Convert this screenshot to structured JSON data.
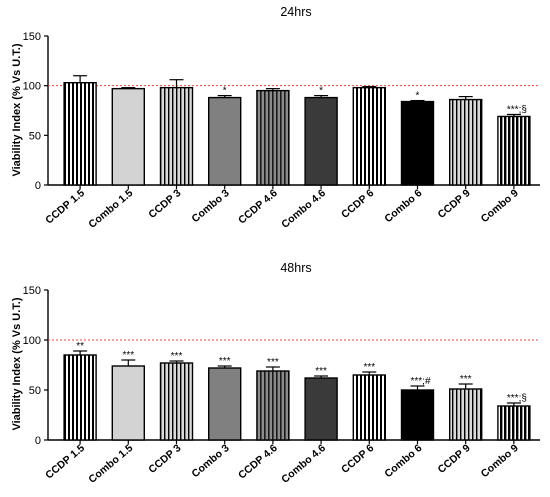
{
  "colors": {
    "reference_line": "#e8473c",
    "axis": "#000000"
  },
  "chart_data": [
    {
      "type": "bar",
      "title": "24hrs",
      "ylabel": "Viability Index (% Vs U.T.)",
      "xlabel": "",
      "ylim": [
        0,
        150
      ],
      "yticks": [
        0,
        50,
        100,
        150
      ],
      "reference_line": 100,
      "categories": [
        "CCDP 1.5",
        "Combo 1.5",
        "CCDP 3",
        "Combo 3",
        "CCDP 4.6",
        "Combo 4.6",
        "CCDP 6",
        "Combo 6",
        "CCDP 9",
        "Combo 9"
      ],
      "values": [
        103,
        97,
        98,
        88,
        95,
        88,
        98,
        84,
        86,
        69
      ],
      "errors": [
        7,
        1,
        8,
        2,
        2,
        2,
        1,
        1,
        3,
        2
      ],
      "patterns": [
        "vstripes-white",
        "light-gray",
        "vstripes-light",
        "mid-gray",
        "vstripes-gray",
        "dark-gray",
        "vstripes-white",
        "black",
        "vstripes-light",
        "vstripes-black"
      ],
      "significance": [
        "",
        "",
        "",
        "*",
        "",
        "*",
        "",
        "*",
        "",
        "***;§"
      ]
    },
    {
      "type": "bar",
      "title": "48hrs",
      "ylabel": "Viability Index (% Vs U.T.)",
      "xlabel": "",
      "ylim": [
        0,
        150
      ],
      "yticks": [
        0,
        50,
        100,
        150
      ],
      "reference_line": 100,
      "categories": [
        "CCDP 1.5",
        "Combo 1.5",
        "CCDP 3",
        "Combo 3",
        "CCDP 4.6",
        "Combo 4.6",
        "CCDP 6",
        "Combo 6",
        "CCDP 9",
        "Combo 9"
      ],
      "values": [
        85,
        74,
        77,
        72,
        69,
        62,
        65,
        50,
        51,
        34
      ],
      "errors": [
        4,
        6,
        2,
        2,
        4,
        2,
        3,
        4,
        5,
        3
      ],
      "patterns": [
        "vstripes-white",
        "light-gray",
        "vstripes-light",
        "mid-gray",
        "vstripes-gray",
        "dark-gray",
        "vstripes-white",
        "black",
        "vstripes-light",
        "vstripes-black"
      ],
      "significance": [
        "**",
        "***",
        "***",
        "***",
        "***",
        "***",
        "***",
        "***;#",
        "***",
        "***;§"
      ]
    }
  ]
}
